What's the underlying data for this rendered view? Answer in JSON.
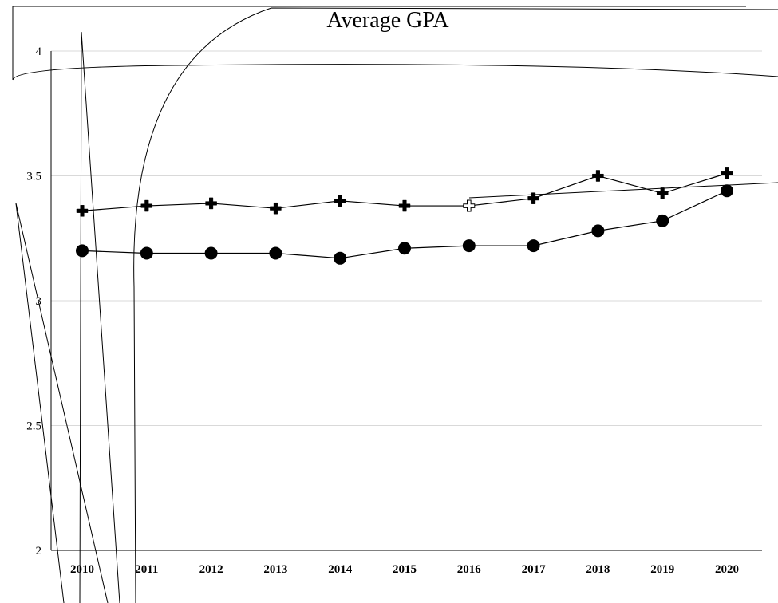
{
  "chart_data": {
    "type": "line",
    "title": "Average GPA",
    "xlabel": "",
    "ylabel": "",
    "categories": [
      "2010",
      "2011",
      "2012",
      "2013",
      "2014",
      "2015",
      "2016",
      "2017",
      "2018",
      "2019",
      "2020"
    ],
    "ylim": [
      2,
      4
    ],
    "yticks": [
      "2",
      "2.5",
      "3",
      "3.5",
      "4"
    ],
    "grid": true,
    "series": [
      {
        "values": [
          3.36,
          3.38,
          3.39,
          3.37,
          3.4,
          3.38,
          3.38,
          3.41,
          3.5,
          3.43,
          3.51
        ],
        "marker": "cross"
      },
      {
        "values": [
          3.2,
          3.19,
          3.19,
          3.19,
          3.17,
          3.21,
          3.22,
          3.22,
          3.28,
          3.32,
          3.44
        ],
        "marker": "circle"
      }
    ]
  }
}
